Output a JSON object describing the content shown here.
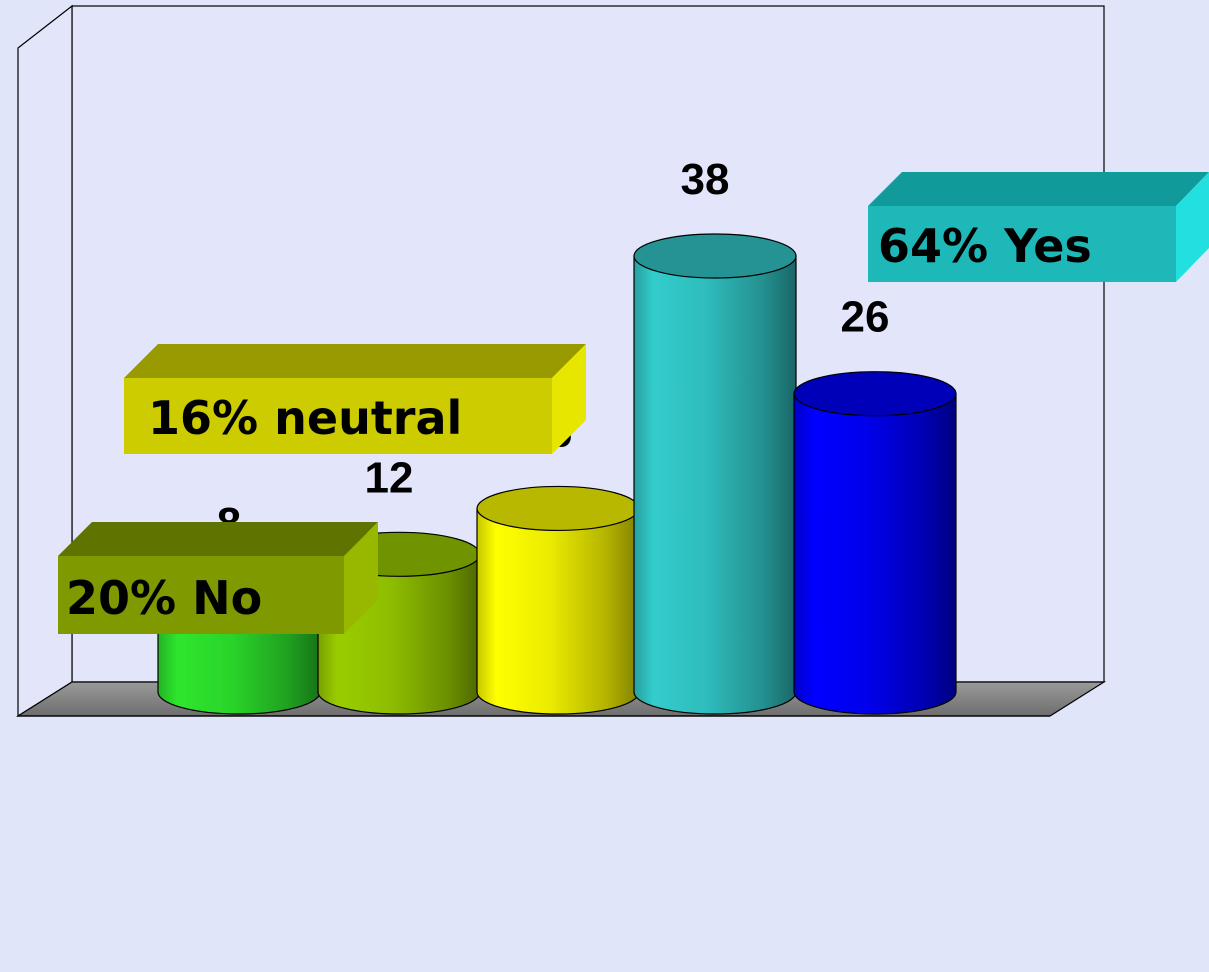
{
  "chart_data": {
    "type": "bar",
    "values": [
      8,
      12,
      16,
      38,
      26
    ],
    "bar_colors": [
      "#2ee62e",
      "#9acd00",
      "#ffff00",
      "#33cccc",
      "#0000ff"
    ],
    "value_labels": [
      "8",
      "12",
      "16",
      "38",
      "26"
    ],
    "callouts": [
      {
        "text": "20% No",
        "color": "#7f9900"
      },
      {
        "text": "16% neutral",
        "color": "#cccc00"
      },
      {
        "text": "64% Yes",
        "color": "#1fb8b8"
      }
    ],
    "ylim": [
      0,
      40
    ],
    "grid": false,
    "legend": "none"
  }
}
